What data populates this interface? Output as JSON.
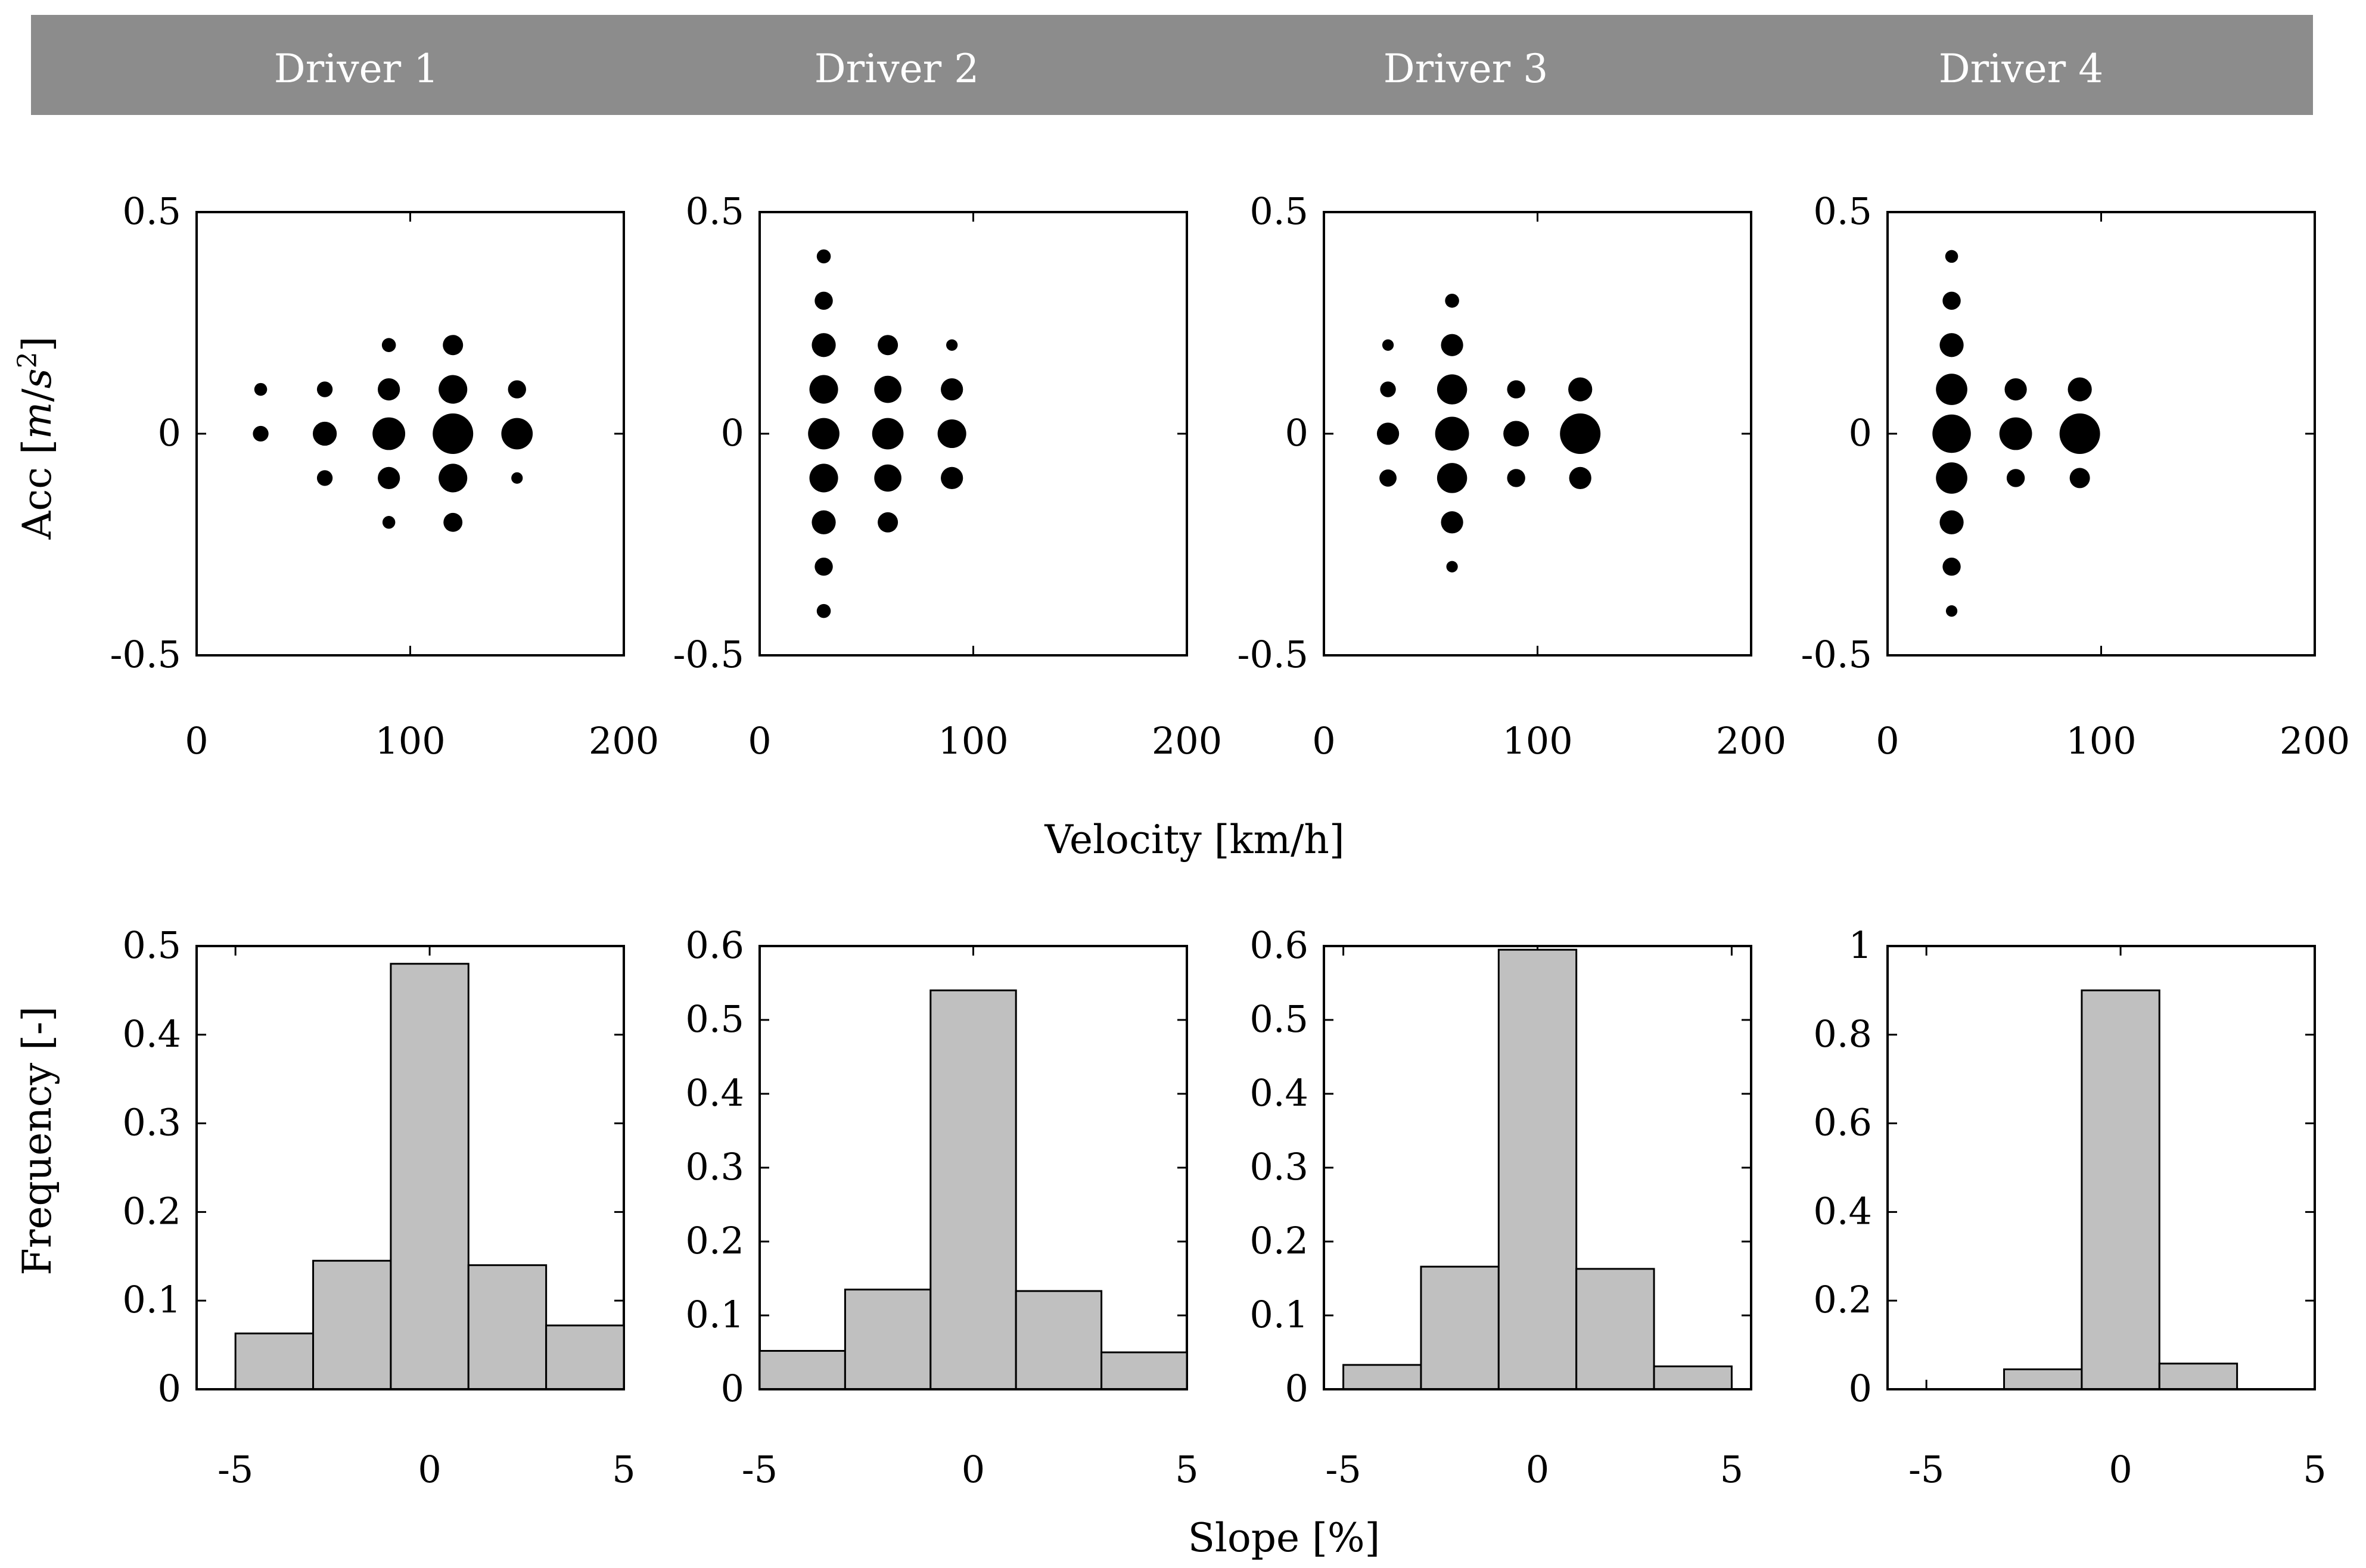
{
  "header": {
    "drivers": [
      "Driver 1",
      "Driver 2",
      "Driver 3",
      "Driver 4"
    ],
    "colors": {
      "band": "#8c8c8c",
      "text": "#ffffff"
    }
  },
  "labels": {
    "velocity_xlabel": "Velocity [km/h]",
    "acc_ylabel_prefix": "Acc [",
    "acc_ylabel_unit_m": "m",
    "acc_ylabel_unit_sep": "/",
    "acc_ylabel_unit_s": "s",
    "acc_ylabel_unit_exp": "2",
    "acc_ylabel_suffix": "]",
    "slope_xlabel": "Slope [%]",
    "freq_ylabel": "Frequency [-]"
  },
  "colors": {
    "bar_fill": "#c0c0c0",
    "bar_stroke": "#000000",
    "dot": "#000000"
  },
  "chart_data": [
    {
      "type": "scatter",
      "panel": "Driver 1 velocity-acceleration",
      "xlabel": "Velocity [km/h]",
      "ylabel": "Acc [m/s2]",
      "xlim": [
        0,
        200
      ],
      "ylim": [
        -0.5,
        0.5
      ],
      "xticks": [
        "0",
        "100",
        "200"
      ],
      "yticks": [
        "0.5",
        "0",
        "-0.5"
      ],
      "points": [
        {
          "x": 30,
          "y": 0.1,
          "w": 0.1
        },
        {
          "x": 30,
          "y": 0,
          "w": 0.15
        },
        {
          "x": 60,
          "y": 0.1,
          "w": 0.15
        },
        {
          "x": 60,
          "y": 0,
          "w": 0.35
        },
        {
          "x": 60,
          "y": -0.1,
          "w": 0.15
        },
        {
          "x": 90,
          "y": 0.2,
          "w": 0.12
        },
        {
          "x": 90,
          "y": 0.1,
          "w": 0.3
        },
        {
          "x": 90,
          "y": 0,
          "w": 0.65
        },
        {
          "x": 90,
          "y": -0.1,
          "w": 0.3
        },
        {
          "x": 90,
          "y": -0.2,
          "w": 0.1
        },
        {
          "x": 120,
          "y": 0.2,
          "w": 0.25
        },
        {
          "x": 120,
          "y": 0.1,
          "w": 0.5
        },
        {
          "x": 120,
          "y": 0,
          "w": 1.0
        },
        {
          "x": 120,
          "y": -0.1,
          "w": 0.5
        },
        {
          "x": 120,
          "y": -0.2,
          "w": 0.22
        },
        {
          "x": 150,
          "y": 0.1,
          "w": 0.2
        },
        {
          "x": 150,
          "y": 0,
          "w": 0.6
        },
        {
          "x": 150,
          "y": -0.1,
          "w": 0.08
        }
      ]
    },
    {
      "type": "scatter",
      "panel": "Driver 2 velocity-acceleration",
      "xlim": [
        0,
        200
      ],
      "ylim": [
        -0.5,
        0.5
      ],
      "xticks": [
        "0",
        "100",
        "200"
      ],
      "yticks": [
        "0.5",
        "0",
        "-0.5"
      ],
      "points": [
        {
          "x": 30,
          "y": 0.4,
          "w": 0.12
        },
        {
          "x": 30,
          "y": 0.3,
          "w": 0.2
        },
        {
          "x": 30,
          "y": 0.2,
          "w": 0.35
        },
        {
          "x": 30,
          "y": 0.1,
          "w": 0.5
        },
        {
          "x": 30,
          "y": 0,
          "w": 0.6
        },
        {
          "x": 30,
          "y": -0.1,
          "w": 0.5
        },
        {
          "x": 30,
          "y": -0.2,
          "w": 0.35
        },
        {
          "x": 30,
          "y": -0.3,
          "w": 0.2
        },
        {
          "x": 30,
          "y": -0.4,
          "w": 0.12
        },
        {
          "x": 60,
          "y": 0.2,
          "w": 0.25
        },
        {
          "x": 60,
          "y": 0.1,
          "w": 0.45
        },
        {
          "x": 60,
          "y": 0,
          "w": 0.6
        },
        {
          "x": 60,
          "y": -0.1,
          "w": 0.45
        },
        {
          "x": 60,
          "y": -0.2,
          "w": 0.25
        },
        {
          "x": 90,
          "y": 0.2,
          "w": 0.08
        },
        {
          "x": 90,
          "y": 0.1,
          "w": 0.3
        },
        {
          "x": 90,
          "y": 0,
          "w": 0.5
        },
        {
          "x": 90,
          "y": -0.1,
          "w": 0.3
        }
      ]
    },
    {
      "type": "scatter",
      "panel": "Driver 3 velocity-acceleration",
      "xlim": [
        0,
        200
      ],
      "ylim": [
        -0.5,
        0.5
      ],
      "xticks": [
        "0",
        "100",
        "200"
      ],
      "yticks": [
        "0.5",
        "0",
        "-0.5"
      ],
      "points": [
        {
          "x": 30,
          "y": 0.2,
          "w": 0.08
        },
        {
          "x": 30,
          "y": 0.1,
          "w": 0.15
        },
        {
          "x": 30,
          "y": 0,
          "w": 0.3
        },
        {
          "x": 30,
          "y": -0.1,
          "w": 0.18
        },
        {
          "x": 60,
          "y": 0.3,
          "w": 0.12
        },
        {
          "x": 60,
          "y": 0.2,
          "w": 0.3
        },
        {
          "x": 60,
          "y": 0.1,
          "w": 0.55
        },
        {
          "x": 60,
          "y": 0,
          "w": 0.7
        },
        {
          "x": 60,
          "y": -0.1,
          "w": 0.55
        },
        {
          "x": 60,
          "y": -0.2,
          "w": 0.3
        },
        {
          "x": 60,
          "y": -0.3,
          "w": 0.08
        },
        {
          "x": 90,
          "y": 0.1,
          "w": 0.2
        },
        {
          "x": 90,
          "y": 0,
          "w": 0.4
        },
        {
          "x": 90,
          "y": -0.1,
          "w": 0.2
        },
        {
          "x": 120,
          "y": 0.1,
          "w": 0.35
        },
        {
          "x": 120,
          "y": 0,
          "w": 1.0
        },
        {
          "x": 120,
          "y": -0.1,
          "w": 0.3
        }
      ]
    },
    {
      "type": "scatter",
      "panel": "Driver 4 velocity-acceleration",
      "xlim": [
        0,
        200
      ],
      "ylim": [
        -0.5,
        0.5
      ],
      "xticks": [
        "0",
        "100",
        "200"
      ],
      "yticks": [
        "0.5",
        "0",
        "-0.5"
      ],
      "points": [
        {
          "x": 30,
          "y": 0.4,
          "w": 0.1
        },
        {
          "x": 30,
          "y": 0.3,
          "w": 0.2
        },
        {
          "x": 30,
          "y": 0.2,
          "w": 0.35
        },
        {
          "x": 30,
          "y": 0.1,
          "w": 0.6
        },
        {
          "x": 30,
          "y": 0,
          "w": 0.9
        },
        {
          "x": 30,
          "y": -0.1,
          "w": 0.6
        },
        {
          "x": 30,
          "y": -0.2,
          "w": 0.35
        },
        {
          "x": 30,
          "y": -0.3,
          "w": 0.2
        },
        {
          "x": 30,
          "y": -0.4,
          "w": 0.08
        },
        {
          "x": 60,
          "y": 0.1,
          "w": 0.3
        },
        {
          "x": 60,
          "y": 0,
          "w": 0.65
        },
        {
          "x": 60,
          "y": -0.1,
          "w": 0.2
        },
        {
          "x": 90,
          "y": 0.1,
          "w": 0.35
        },
        {
          "x": 90,
          "y": 0,
          "w": 1.0
        },
        {
          "x": 90,
          "y": -0.1,
          "w": 0.25
        }
      ]
    },
    {
      "type": "bar",
      "panel": "Driver 1 slope histogram",
      "xlabel": "Slope [%]",
      "ylabel": "Frequency [-]",
      "xlim": [
        -6,
        5
      ],
      "ylim": [
        0,
        0.5
      ],
      "xticks": [
        "-5",
        "0",
        "5"
      ],
      "yticks": [
        "0.5",
        "0.4",
        "0.3",
        "0.2",
        "0.1",
        "0"
      ],
      "bin_edges": [
        -5,
        -3,
        -1,
        1,
        3,
        5
      ],
      "values": [
        0.063,
        0.145,
        0.48,
        0.14,
        0.072
      ]
    },
    {
      "type": "bar",
      "panel": "Driver 2 slope histogram",
      "xlim": [
        -5,
        5
      ],
      "ylim": [
        0,
        0.6
      ],
      "xticks": [
        "-5",
        "0",
        "5"
      ],
      "yticks": [
        "0.6",
        "0.5",
        "0.4",
        "0.3",
        "0.2",
        "0.1",
        "0"
      ],
      "bin_edges": [
        -5,
        -3,
        -1,
        1,
        3,
        5
      ],
      "values": [
        0.052,
        0.135,
        0.54,
        0.133,
        0.05
      ]
    },
    {
      "type": "bar",
      "panel": "Driver 3 slope histogram",
      "xlim": [
        -5.5,
        5.5
      ],
      "ylim": [
        0,
        0.6
      ],
      "xticks": [
        "-5",
        "0",
        "5"
      ],
      "yticks": [
        "0.6",
        "0.5",
        "0.4",
        "0.3",
        "0.2",
        "0.1",
        "0"
      ],
      "bin_edges": [
        -5,
        -3,
        -1,
        1,
        3,
        5
      ],
      "values": [
        0.033,
        0.166,
        0.595,
        0.163,
        0.031
      ]
    },
    {
      "type": "bar",
      "panel": "Driver 4 slope histogram",
      "xlim": [
        -6,
        5
      ],
      "ylim": [
        0,
        1
      ],
      "xticks": [
        "-5",
        "0",
        "5"
      ],
      "yticks": [
        "1",
        "0.8",
        "0.6",
        "0.4",
        "0.2",
        "0"
      ],
      "bin_edges": [
        -5,
        -3,
        -1,
        1,
        3,
        5
      ],
      "values": [
        0,
        0.045,
        0.9,
        0.058,
        0
      ]
    }
  ]
}
